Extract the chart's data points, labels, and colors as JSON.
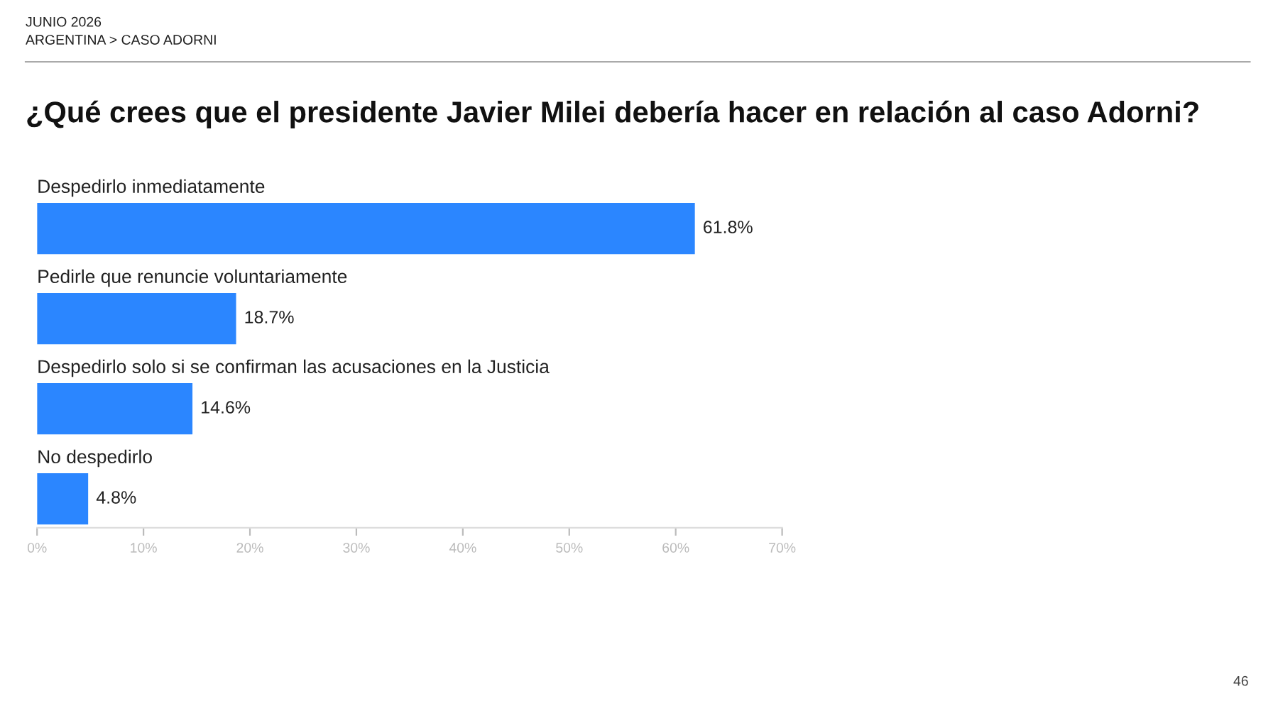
{
  "chart_data": {
    "type": "bar",
    "orientation": "horizontal",
    "title": "¿Qué crees que el presidente Javier Milei debería hacer en relación al caso Adorni?",
    "annotations": [
      "JUNIO 2026",
      "ARGENTINA > CASO ADORNI",
      "46"
    ],
    "categories": [
      "Despedirlo inmediatamente",
      "Pedirle que renuncie voluntariamente",
      "Despedirlo solo si se confirman las acusaciones en la Justicia",
      "No despedirlo"
    ],
    "values": [
      61.8,
      18.7,
      14.6,
      4.8
    ],
    "value_labels": [
      "61.8%",
      "18.7%",
      "14.6%",
      "4.8%"
    ],
    "color": "#2b86ff",
    "xlim": [
      0,
      70
    ],
    "xticks": [
      {
        "value": 0,
        "label": "0%"
      },
      {
        "value": 10,
        "label": "10%"
      },
      {
        "value": 20,
        "label": "20%"
      },
      {
        "value": 30,
        "label": "30%"
      },
      {
        "value": 40,
        "label": "40%"
      },
      {
        "value": 50,
        "label": "50%"
      },
      {
        "value": 60,
        "label": "60%"
      },
      {
        "value": 70,
        "label": "70%"
      }
    ],
    "tick_labels": "x",
    "grid": false,
    "legend": false
  }
}
